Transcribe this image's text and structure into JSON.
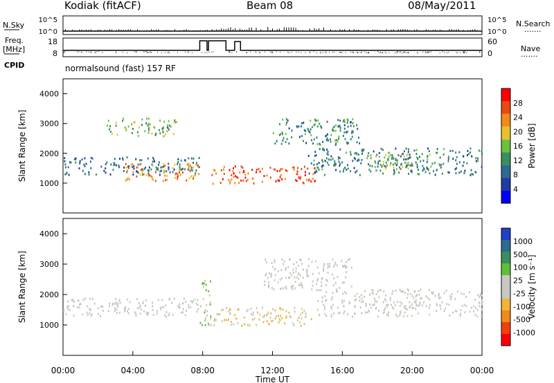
{
  "header": {
    "station": "Kodiak (fitACF)",
    "beam": "Beam 08",
    "date": "08/May/2011"
  },
  "sidebar_labels": {
    "nsky": "N.Sky",
    "freq_line1": "Freq.",
    "freq_line2": "[MHz]",
    "cpid": "CPID",
    "nsearch": "N.Search",
    "nave": "Nave",
    "dots": "......."
  },
  "program": "normalsound (fast) 157 RF",
  "chart_data": [
    {
      "type": "line",
      "name": "noise-panel",
      "left_ylabel": "N.Sky",
      "right_ylabel": "N.Search",
      "left_ticks": [
        "10^5",
        "10^0"
      ],
      "right_ticks": [
        "10^5",
        "10^0"
      ]
    },
    {
      "type": "line",
      "name": "frequency-nave-panel",
      "left_ylabel": "Freq. [MHz]",
      "right_ylabel": "Nave",
      "left_ticks": [
        "18",
        "8"
      ],
      "right_ticks": [
        "60",
        "0"
      ],
      "freq_baseline_mhz": 11,
      "freq_excursions": [
        {
          "start_ut": "07:50",
          "end_ut": "08:15",
          "mhz": 17.5
        },
        {
          "start_ut": "08:20",
          "end_ut": "09:20",
          "mhz": 17.5
        },
        {
          "start_ut": "09:50",
          "end_ut": "10:10",
          "mhz": 17
        }
      ]
    },
    {
      "type": "heatmap",
      "name": "power",
      "xlabel": "",
      "ylabel": "Slant Range [km]",
      "ylim": [
        0,
        4500
      ],
      "yticks": [
        "1000",
        "2000",
        "3000",
        "4000"
      ],
      "colorbar_label": "Power [dB]",
      "colorbar_ticks": [
        "28",
        "24",
        "20",
        "16",
        "12",
        "8",
        "4"
      ],
      "colormap": [
        "#0000ff",
        "#1e3ea0",
        "#2e6b8f",
        "#3a8f5c",
        "#6fbf3f",
        "#e8c02a",
        "#f08a18",
        "#e84a10",
        "#ff0000"
      ],
      "regions": [
        {
          "t0": 0.0,
          "t1": 7.8,
          "r0": 1300,
          "r1": 1900,
          "v": 8
        },
        {
          "t0": 3.5,
          "t1": 7.8,
          "r0": 1100,
          "r1": 1700,
          "v": 22
        },
        {
          "t0": 2.5,
          "t1": 6.5,
          "r0": 2600,
          "r1": 3200,
          "v": 14
        },
        {
          "t0": 8.5,
          "t1": 14.5,
          "r0": 1000,
          "r1": 1600,
          "v": 26
        },
        {
          "t0": 12.0,
          "t1": 17.0,
          "r0": 2300,
          "r1": 3200,
          "v": 10
        },
        {
          "t0": 14.0,
          "t1": 24.0,
          "r0": 1300,
          "r1": 2200,
          "v": 9
        },
        {
          "t0": 17.5,
          "t1": 21.0,
          "r0": 1500,
          "r1": 2000,
          "v": 14
        }
      ]
    },
    {
      "type": "heatmap",
      "name": "velocity",
      "xlabel": "Time UT",
      "ylabel": "Slant Range [km]",
      "ylim": [
        0,
        4500
      ],
      "yticks": [
        "1000",
        "2000",
        "3000",
        "4000"
      ],
      "xticks": [
        "00:00",
        "04:00",
        "08:00",
        "12:00",
        "16:00",
        "20:00",
        "00:00"
      ],
      "colorbar_label": "Velocity [m s⁻¹]",
      "colorbar_ticks": [
        "1000",
        "500",
        "100",
        "25",
        "-25",
        "-100",
        "-500",
        "-1000"
      ],
      "colormap": [
        "#ff0000",
        "#f04010",
        "#f08a18",
        "#f0b43a",
        "#c8c8c0",
        "#c8c8c0",
        "#5ec03a",
        "#3a8f5c",
        "#2e6b8f",
        "#2040c8"
      ],
      "regions": [
        {
          "t0": 0.0,
          "t1": 7.8,
          "r0": 1300,
          "r1": 1900,
          "v": 0
        },
        {
          "t0": 7.8,
          "t1": 8.5,
          "r0": 1000,
          "r1": 2500,
          "v": 200
        },
        {
          "t0": 8.5,
          "t1": 14.2,
          "r0": 1000,
          "r1": 1600,
          "v": -200
        },
        {
          "t0": 11.5,
          "t1": 16.5,
          "r0": 2200,
          "r1": 3200,
          "v": 0
        },
        {
          "t0": 14.5,
          "t1": 24.0,
          "r0": 1300,
          "r1": 2200,
          "v": 0
        }
      ]
    }
  ]
}
